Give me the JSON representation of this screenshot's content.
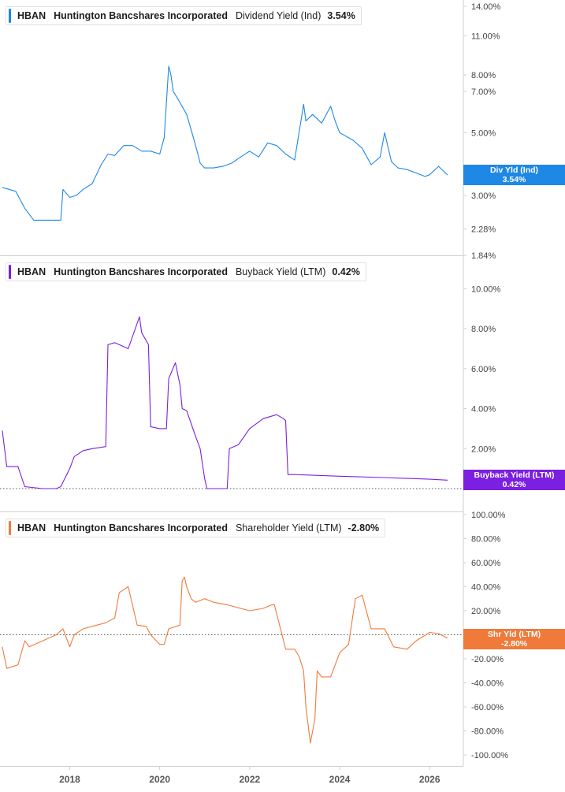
{
  "panels": [
    {
      "ticker": "HBAN",
      "company": "Huntington Bancshares Incorporated",
      "metric": "Dividend Yield (Ind)",
      "value": "3.54%",
      "color": "#1e88e5",
      "badge": {
        "label": "Div Yld (Ind)",
        "value": "3.54%"
      },
      "scale": "log"
    },
    {
      "ticker": "HBAN",
      "company": "Huntington Bancshares Incorporated",
      "metric": "Buyback Yield (LTM)",
      "value": "0.42%",
      "color": "#7b1fe0",
      "badge": {
        "label": "Buyback Yield (LTM)",
        "value": "0.42%"
      },
      "scale": "linear",
      "zero_line": true
    },
    {
      "ticker": "HBAN",
      "company": "Huntington Bancshares Incorporated",
      "metric": "Shareholder Yield (LTM)",
      "value": "-2.80%",
      "color": "#f07a3a",
      "badge": {
        "label": "Shr Yld (LTM)",
        "value": "-2.80%"
      },
      "scale": "linear",
      "zero_line": true
    }
  ],
  "x_axis_labels": [
    "2018",
    "2020",
    "2022",
    "2024",
    "2026"
  ],
  "chart_data": [
    {
      "type": "line",
      "title": "HBAN Huntington Bancshares Incorporated Dividend Yield (Ind) 3.54%",
      "y_scale": "log",
      "ylim": [
        1.84,
        14.0
      ],
      "yticks": [
        14.0,
        11.0,
        8.0,
        7.0,
        5.0,
        3.0,
        2.28,
        1.84
      ],
      "ytick_labels": [
        "14.00%",
        "11.00%",
        "8.00%",
        "7.00%",
        "5.00%",
        "3.00%",
        "2.28%",
        "1.84%"
      ],
      "x": [
        2016.5,
        2016.8,
        2017.0,
        2017.2,
        2017.4,
        2017.6,
        2017.8,
        2017.85,
        2018.0,
        2018.15,
        2018.3,
        2018.5,
        2018.7,
        2018.85,
        2019.0,
        2019.2,
        2019.4,
        2019.6,
        2019.8,
        2020.0,
        2020.1,
        2020.2,
        2020.25,
        2020.3,
        2020.4,
        2020.6,
        2020.8,
        2020.9,
        2021.0,
        2021.2,
        2021.4,
        2021.6,
        2021.8,
        2022.0,
        2022.2,
        2022.4,
        2022.6,
        2022.8,
        2023.0,
        2023.2,
        2023.25,
        2023.4,
        2023.6,
        2023.8,
        2023.9,
        2024.0,
        2024.3,
        2024.5,
        2024.7,
        2024.9,
        2025.0,
        2025.15,
        2025.3,
        2025.5,
        2025.7,
        2025.9,
        2026.0,
        2026.2,
        2026.4
      ],
      "y": [
        3.2,
        3.1,
        2.7,
        2.45,
        2.45,
        2.45,
        2.45,
        3.15,
        2.95,
        3.0,
        3.15,
        3.3,
        3.85,
        4.2,
        4.15,
        4.5,
        4.5,
        4.3,
        4.3,
        4.2,
        4.8,
        8.6,
        8.0,
        7.0,
        6.6,
        5.8,
        4.5,
        3.9,
        3.75,
        3.75,
        3.8,
        3.9,
        4.1,
        4.3,
        4.1,
        4.6,
        4.5,
        4.2,
        4.0,
        6.3,
        5.5,
        5.8,
        5.4,
        6.2,
        5.5,
        5.0,
        4.7,
        4.4,
        3.85,
        4.1,
        5.0,
        3.95,
        3.75,
        3.7,
        3.6,
        3.5,
        3.55,
        3.8,
        3.54
      ],
      "series": [
        {
          "name": "Div Yld (Ind)"
        }
      ]
    },
    {
      "type": "line",
      "title": "HBAN Huntington Bancshares Incorporated Buyback Yield (LTM) 0.42%",
      "ylim": [
        0.0,
        11.0
      ],
      "yticks": [
        10.0,
        8.0,
        6.0,
        4.0,
        2.0
      ],
      "ytick_labels": [
        "10.00%",
        "8.00%",
        "6.00%",
        "4.00%",
        "2.00%"
      ],
      "x": [
        2016.5,
        2016.6,
        2016.85,
        2017.0,
        2017.4,
        2017.7,
        2017.8,
        2018.0,
        2018.1,
        2018.3,
        2018.5,
        2018.8,
        2018.85,
        2019.0,
        2019.3,
        2019.55,
        2019.6,
        2019.75,
        2019.8,
        2020.0,
        2020.15,
        2020.2,
        2020.35,
        2020.45,
        2020.5,
        2020.6,
        2020.8,
        2020.9,
        2021.0,
        2021.05,
        2021.5,
        2021.55,
        2021.75,
        2022.0,
        2022.3,
        2022.6,
        2022.75,
        2022.8,
        2022.85,
        2023.0,
        2024.0,
        2025.0,
        2026.0,
        2026.4
      ],
      "y": [
        2.9,
        1.1,
        1.1,
        0.1,
        0.0,
        0.0,
        0.1,
        1.0,
        1.6,
        1.9,
        2.0,
        2.1,
        7.2,
        7.3,
        7.0,
        8.6,
        7.8,
        7.2,
        3.1,
        3.0,
        3.0,
        5.5,
        6.3,
        5.2,
        4.0,
        3.9,
        2.6,
        2.0,
        0.5,
        0.0,
        0.0,
        2.0,
        2.2,
        3.0,
        3.5,
        3.7,
        3.5,
        3.4,
        0.7,
        0.7,
        0.62,
        0.55,
        0.47,
        0.42
      ],
      "series": [
        {
          "name": "Buyback Yield (LTM)"
        }
      ]
    },
    {
      "type": "line",
      "title": "HBAN Huntington Bancshares Incorporated Shareholder Yield (LTM) -2.80%",
      "ylim": [
        -100.0,
        100.0
      ],
      "yticks": [
        100.0,
        80.0,
        60.0,
        40.0,
        20.0,
        -20.0,
        -40.0,
        -60.0,
        -80.0,
        -100.0
      ],
      "ytick_labels": [
        "100.00%",
        "80.00%",
        "60.00%",
        "40.00%",
        "20.00%",
        "-20.00%",
        "-40.00%",
        "-60.00%",
        "-80.00%",
        "-100.00%"
      ],
      "x": [
        2016.5,
        2016.6,
        2016.85,
        2017.0,
        2017.1,
        2017.4,
        2017.7,
        2017.85,
        2018.0,
        2018.1,
        2018.3,
        2018.6,
        2018.8,
        2019.0,
        2019.1,
        2019.3,
        2019.5,
        2019.7,
        2019.8,
        2020.0,
        2020.1,
        2020.2,
        2020.45,
        2020.5,
        2020.55,
        2020.6,
        2020.7,
        2020.8,
        2021.0,
        2021.2,
        2021.5,
        2021.8,
        2022.0,
        2022.3,
        2022.5,
        2022.55,
        2022.8,
        2022.9,
        2023.0,
        2023.1,
        2023.2,
        2023.25,
        2023.35,
        2023.45,
        2023.5,
        2023.6,
        2023.8,
        2024.0,
        2024.2,
        2024.25,
        2024.35,
        2024.5,
        2024.7,
        2025.0,
        2025.2,
        2025.5,
        2025.7,
        2026.0,
        2026.2,
        2026.4
      ],
      "y": [
        -10,
        -28,
        -25,
        -5,
        -10,
        -5,
        0,
        5,
        -10,
        0,
        5,
        8,
        10,
        14,
        35,
        40,
        8,
        7,
        0,
        -8,
        -8,
        5,
        8,
        45,
        48,
        40,
        30,
        27,
        30,
        27,
        25,
        22,
        20,
        22,
        25,
        25,
        -12,
        -12,
        -12,
        -18,
        -30,
        -60,
        -90,
        -70,
        -30,
        -35,
        -35,
        -15,
        -8,
        5,
        30,
        33,
        5,
        5,
        -10,
        -12,
        -5,
        2,
        1,
        -2.8
      ],
      "series": [
        {
          "name": "Shr Yld (LTM)"
        }
      ]
    }
  ]
}
